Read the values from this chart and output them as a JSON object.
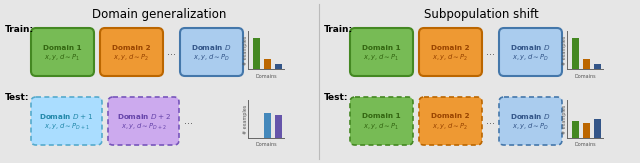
{
  "bg_color": "#e6e6e6",
  "title_left": "Domain generalization",
  "title_right": "Subpopulation shift",
  "title_fontsize": 8.5,
  "label_fontsize": 6.5,
  "green_fill": "#77bb55",
  "green_edge": "#448822",
  "green_text": "#336611",
  "orange_fill": "#ee9933",
  "orange_edge": "#bb6600",
  "orange_text": "#994400",
  "blue_solid_fill": "#aaccee",
  "blue_solid_edge": "#4477aa",
  "blue_solid_text": "#335588",
  "blue_dash_fill": "#aaccee",
  "blue_dash_edge": "#4477aa",
  "blue_dash_text": "#335588",
  "lightblue_dash_fill": "#aaddff",
  "lightblue_dash_edge": "#55aacc",
  "lightblue_dash_text": "#2288aa",
  "purple_fill": "#ccaaee",
  "purple_edge": "#7755bb",
  "purple_text": "#6644aa",
  "bar_green": "#448822",
  "bar_orange": "#bb6600",
  "bar_blue": "#335588",
  "bar_lightblue": "#4488bb",
  "bar_purple": "#6655aa",
  "dg_train_bars": [
    0.88,
    0.3,
    0.14
  ],
  "dg_train_colors": [
    "#448822",
    "#bb6600",
    "#335588"
  ],
  "dg_test_bars": [
    0.0,
    0.72,
    0.65
  ],
  "dg_test_colors": [
    "#448822",
    "#4488bb",
    "#6655aa"
  ],
  "sp_train_bars": [
    0.88,
    0.3,
    0.14
  ],
  "sp_train_colors": [
    "#448822",
    "#bb6600",
    "#335588"
  ],
  "sp_test_bars": [
    0.5,
    0.42,
    0.55
  ],
  "sp_test_colors": [
    "#448822",
    "#bb6600",
    "#335588"
  ]
}
